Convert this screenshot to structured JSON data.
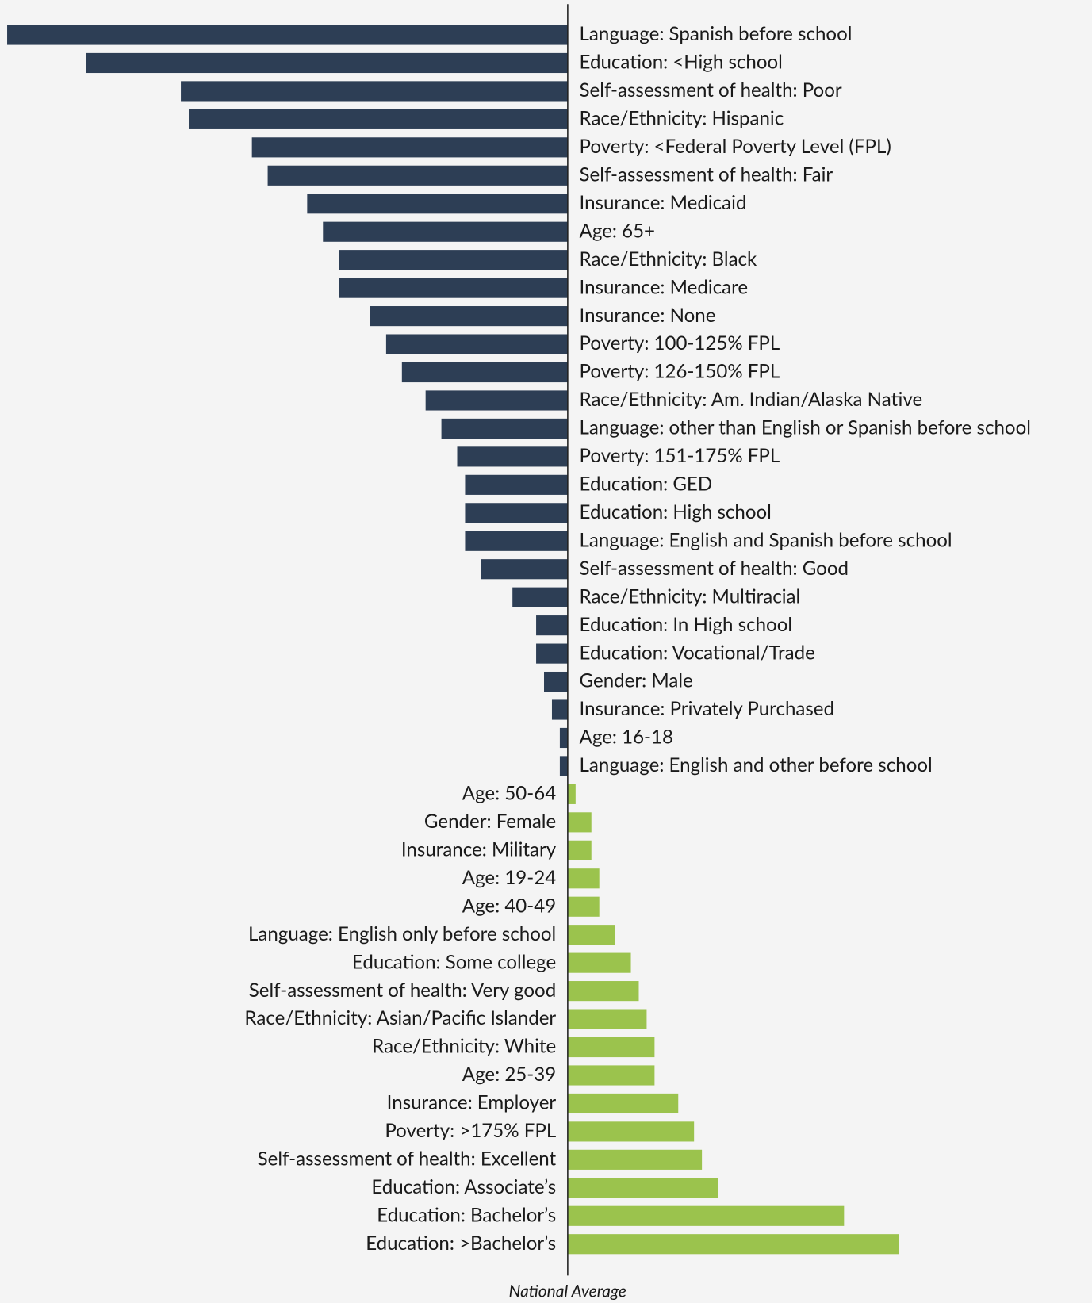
{
  "chart_data": {
    "type": "bar",
    "orientation": "horizontal",
    "categories": [
      "Language: Spanish before school",
      "Education: <High school",
      "Self-assessment of health: Poor",
      "Race/Ethnicity: Hispanic",
      "Poverty: <Federal Poverty Level (FPL)",
      "Self-assessment of health: Fair",
      "Insurance: Medicaid",
      "Age: 65+",
      "Race/Ethnicity: Black",
      "Insurance: Medicare",
      "Insurance: None",
      "Poverty: 100-125% FPL",
      "Poverty: 126-150% FPL",
      "Race/Ethnicity: Am. Indian/Alaska Native",
      "Language: other than English or Spanish before school",
      "Poverty: 151-175% FPL",
      "Education: GED",
      "Education: High school",
      "Language: English and Spanish before school",
      "Self-assessment of health: Good",
      "Race/Ethnicity: Multiracial",
      "Education: In High school",
      "Education: Vocational/Trade",
      "Gender: Male",
      "Insurance: Privately Purchased",
      "Age: 16-18",
      "Language: English and other before school",
      "Age: 50-64",
      "Gender: Female",
      "Insurance: Military",
      "Age: 19-24",
      "Age: 40-49",
      "Language: English only before school",
      "Education: Some college",
      "Self-assessment of health: Very good",
      "Race/Ethnicity: Asian/Pacific Islander",
      "Race/Ethnicity: White",
      "Age: 25-39",
      "Insurance: Employer",
      "Poverty: >175% FPL",
      "Self-assessment of health: Excellent",
      "Education: Associate’s",
      "Education: Bachelor’s",
      "Education: >Bachelor’s"
    ],
    "values": [
      -71,
      -61,
      -49,
      -48,
      -40,
      -38,
      -33,
      -31,
      -29,
      -29,
      -25,
      -23,
      -21,
      -18,
      -16,
      -14,
      -13,
      -13,
      -13,
      -11,
      -7,
      -4,
      -4,
      -3,
      -2,
      -1,
      -1,
      1,
      3,
      3,
      4,
      4,
      6,
      8,
      9,
      10,
      11,
      11,
      14,
      16,
      17,
      19,
      35,
      42
    ],
    "color_negative": "#2d3e55",
    "color_positive": "#9bc34d",
    "xlim": [
      -71.9,
      66.4
    ],
    "axis_label": "National Average"
  }
}
